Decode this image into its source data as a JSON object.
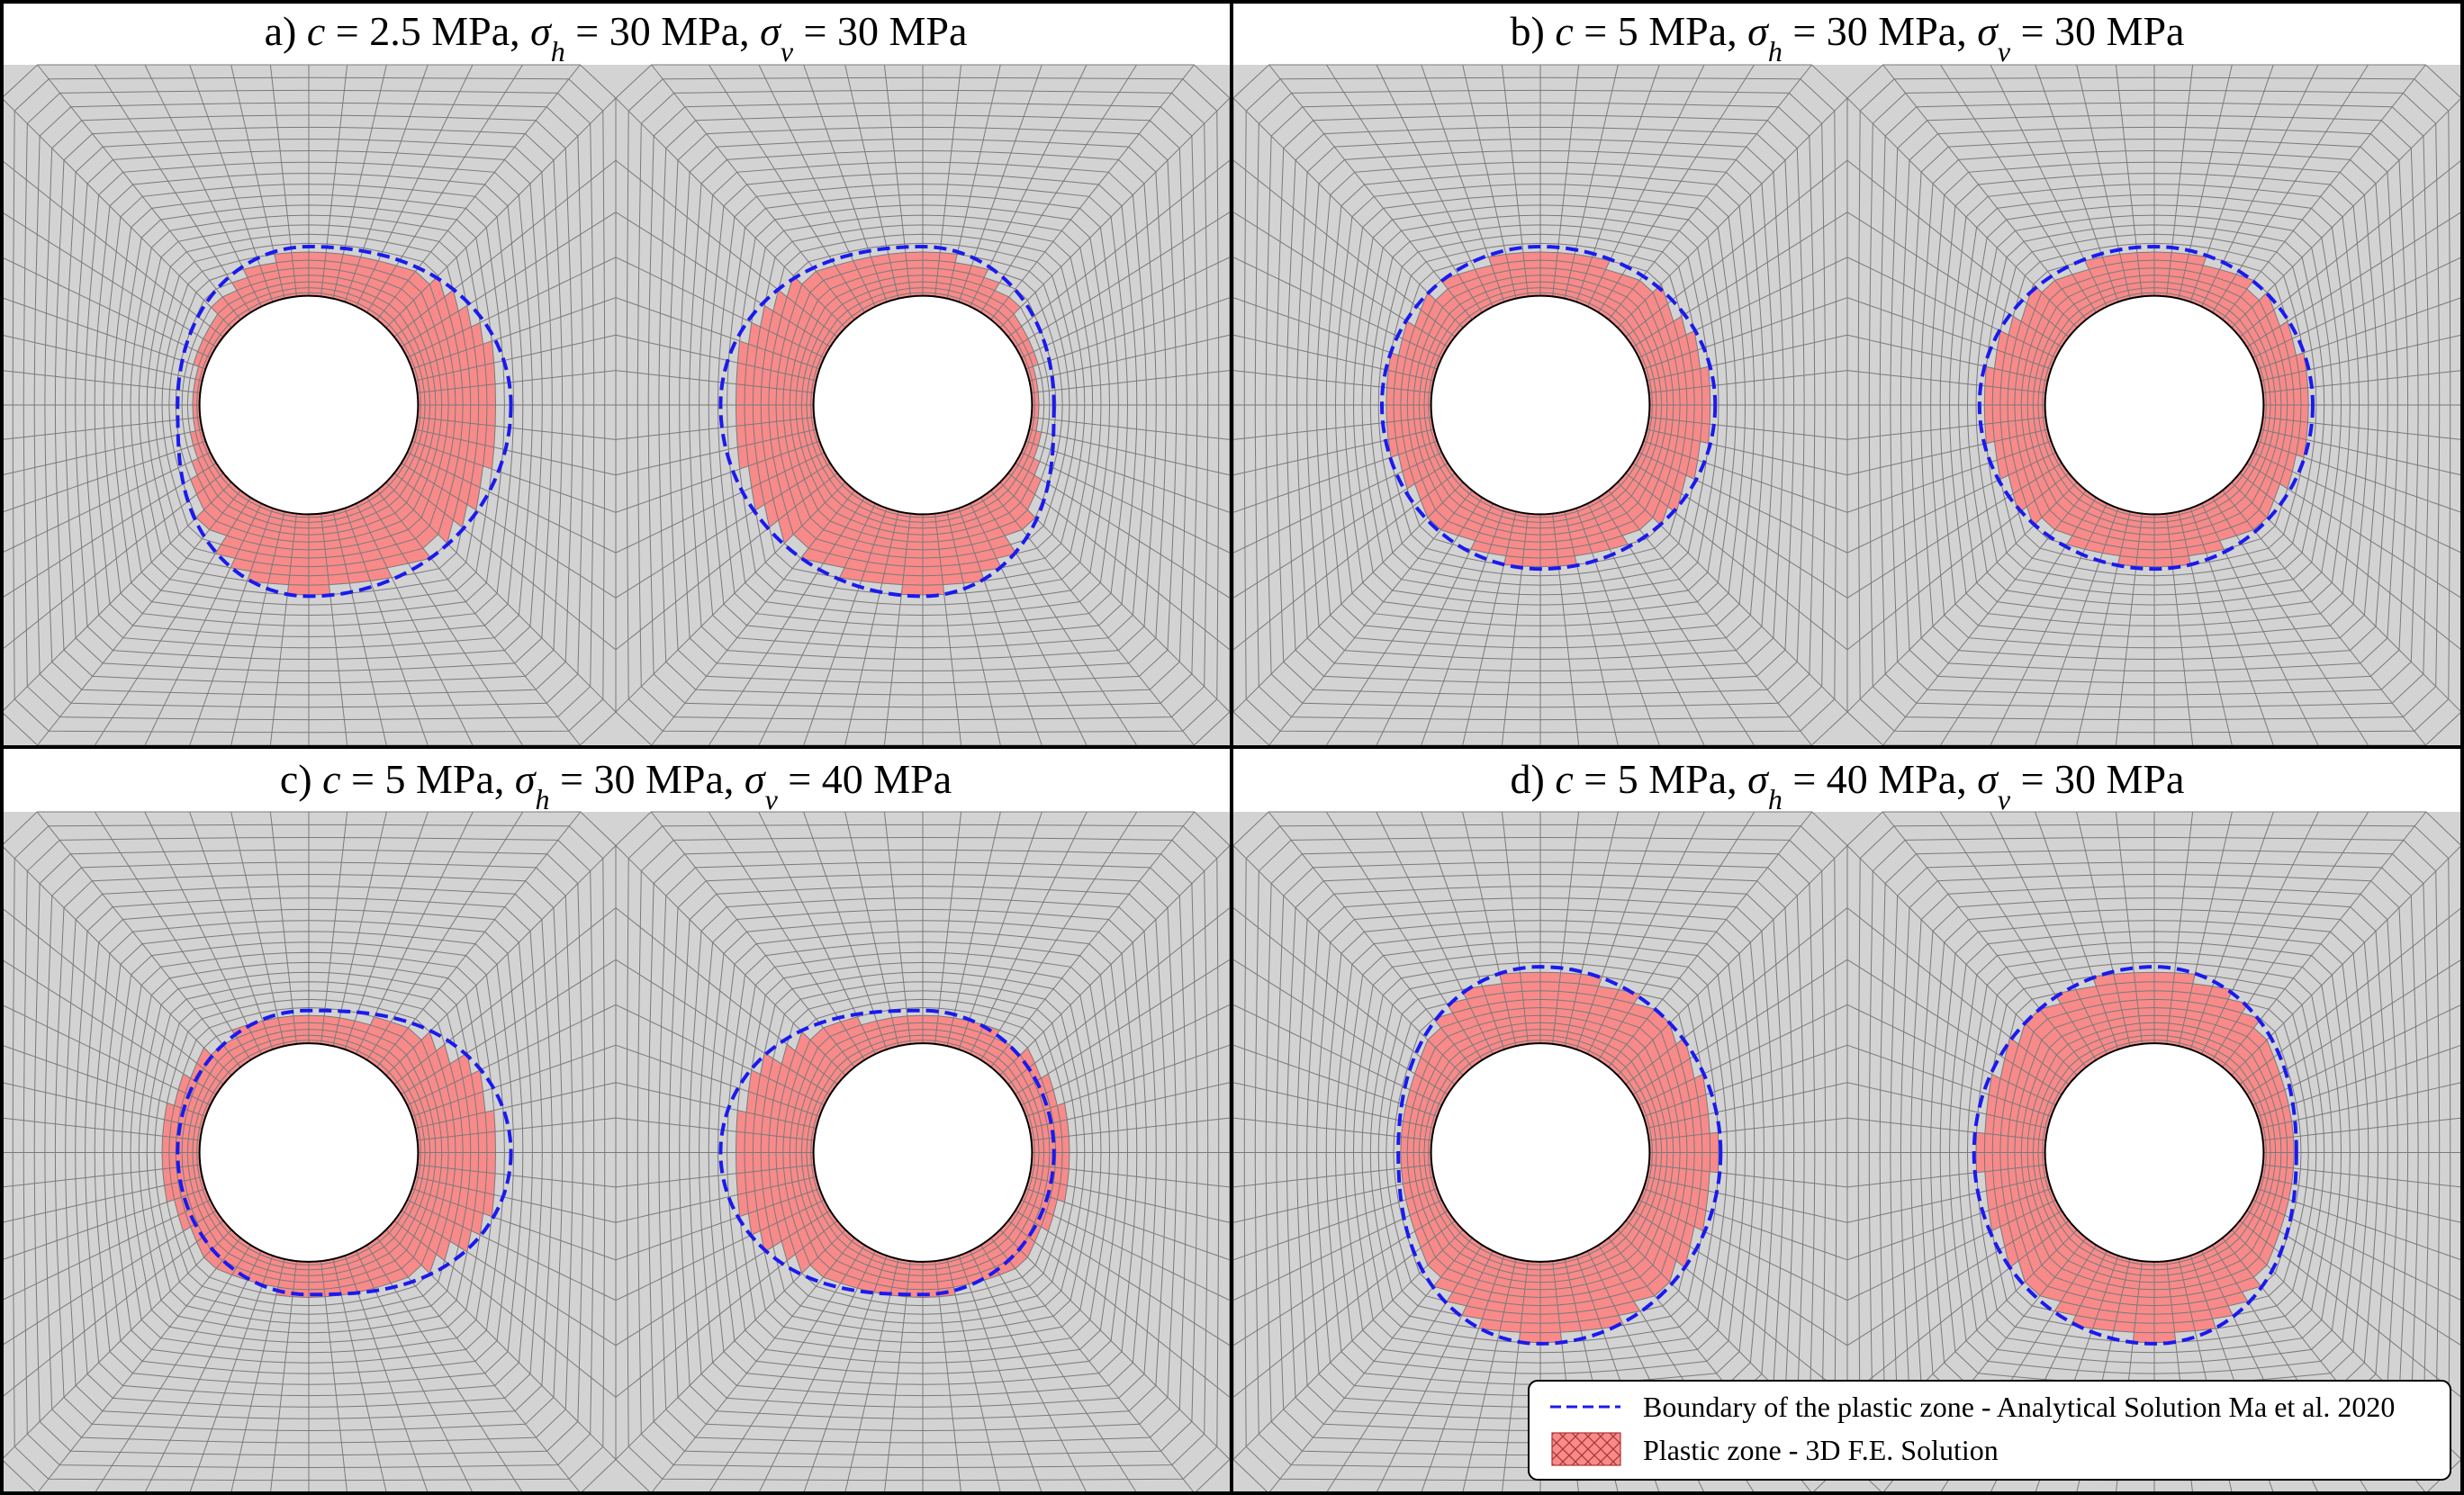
{
  "panels": [
    {
      "label": "a)",
      "c": "2.5",
      "sigma_h": "30",
      "sigma_v": "30",
      "unit": "MPa",
      "mirror_ratio": [
        1.85,
        1.45,
        1.2,
        1.75
      ],
      "plastic_ratio": [
        1.75,
        1.4,
        1.05,
        1.7
      ]
    },
    {
      "label": "b)",
      "c": "5",
      "sigma_h": "30",
      "sigma_v": "30",
      "unit": "MPa",
      "mirror_ratio": [
        1.6,
        1.45,
        1.45,
        1.5
      ],
      "plastic_ratio": [
        1.55,
        1.4,
        1.4,
        1.45
      ]
    },
    {
      "label": "c)",
      "c": "5",
      "sigma_h": "30",
      "sigma_v": "40",
      "unit": "MPa",
      "mirror_ratio": [
        1.85,
        1.3,
        1.2,
        1.3
      ],
      "plastic_ratio": [
        1.75,
        1.25,
        1.35,
        1.3
      ]
    },
    {
      "label": "d)",
      "c": "5",
      "sigma_h": "40",
      "sigma_v": "30",
      "unit": "MPa",
      "mirror_ratio": [
        1.65,
        1.7,
        1.3,
        1.75
      ],
      "plastic_ratio": [
        1.6,
        1.65,
        1.25,
        1.7
      ]
    }
  ],
  "legend": {
    "analytical": "Boundary of the plastic zone - Analytical Solution Ma et al. 2020",
    "fe": "Plastic zone - 3D F.E. Solution"
  },
  "colors": {
    "mesh_fill": "#d3d3d3",
    "mesh_line": "#7a7a7a",
    "plastic_fill": "#f88a8a",
    "boundary": "#1a1aee",
    "frame": "#000000"
  }
}
